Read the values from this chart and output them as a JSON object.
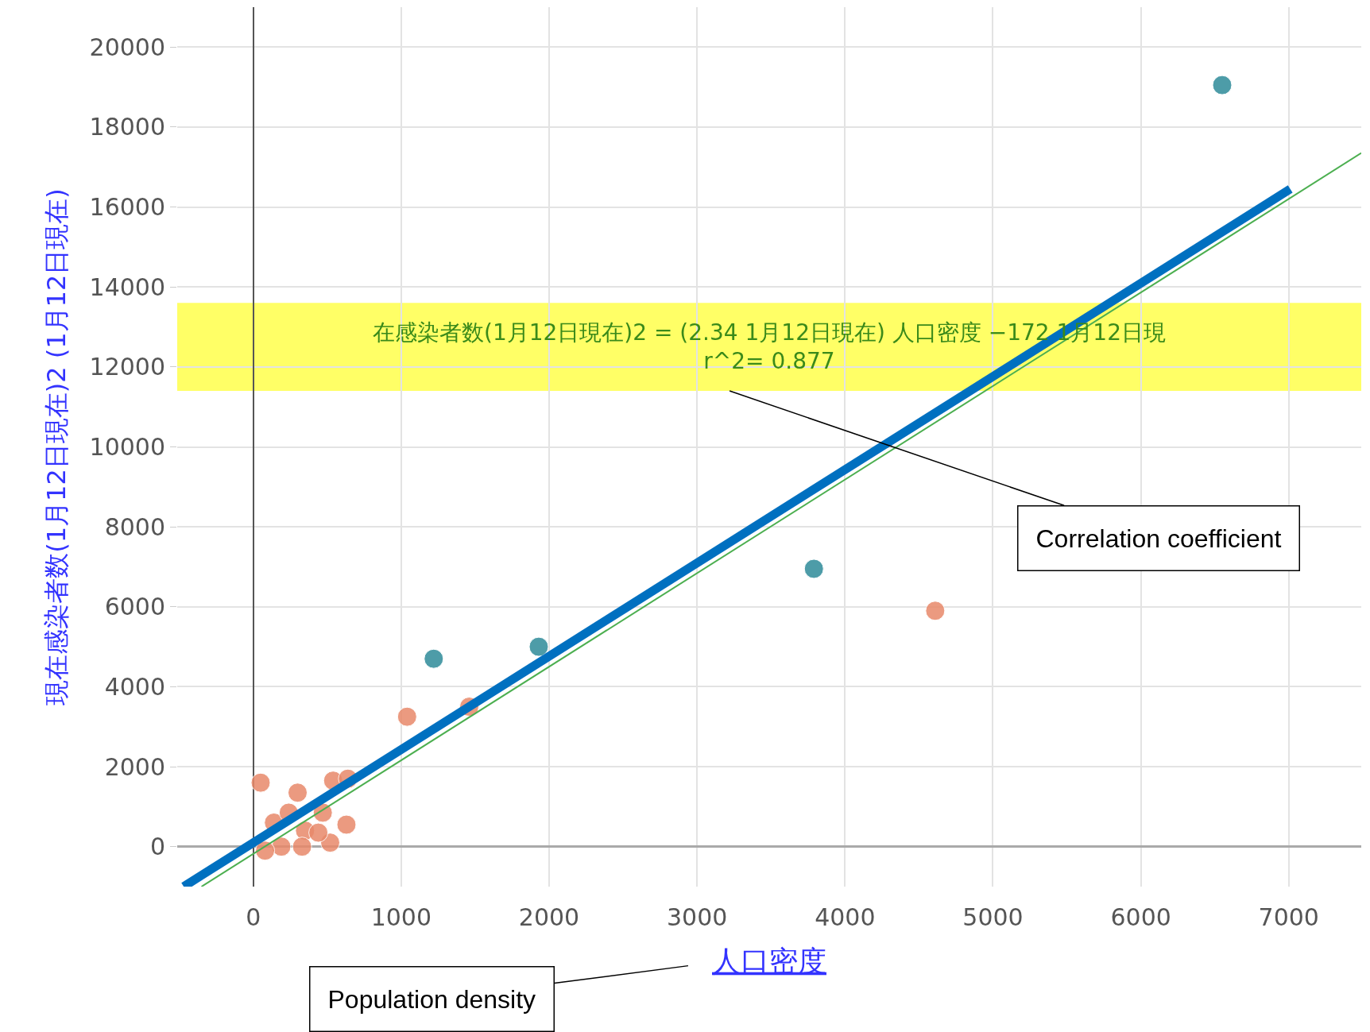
{
  "chart_data": {
    "type": "scatter",
    "xlabel": "人口密度",
    "ylabel": "現在感染者数(1月12日現在)2 (1月12日現在)",
    "xlim": [
      -514,
      7490
    ],
    "ylim": [
      -1000,
      21000
    ],
    "xticks": [
      0,
      1000,
      2000,
      3000,
      4000,
      5000,
      6000,
      7000
    ],
    "yticks": [
      0,
      2000,
      4000,
      6000,
      8000,
      10000,
      12000,
      14000,
      16000,
      18000,
      20000
    ],
    "grid": true,
    "series": [
      {
        "color": "#e8896a",
        "marker": "circle",
        "x": [
          4610,
          1040,
          1460,
          50,
          300,
          540,
          640,
          630,
          520,
          140,
          240,
          350,
          190,
          80,
          330,
          470,
          440
        ],
        "values": [
          5900,
          3250,
          3500,
          1600,
          1350,
          1650,
          1700,
          550,
          100,
          600,
          850,
          400,
          0,
          -100,
          0,
          850,
          350
        ]
      },
      {
        "color": "#2e8b9a",
        "marker": "circle",
        "x": [
          6550,
          3790,
          1930,
          1220
        ],
        "values": [
          19050,
          6950,
          5000,
          4700
        ]
      },
      {
        "type": "line",
        "marker": "none",
        "color": "#4caf50",
        "line_style": "solid",
        "x": [
          -350,
          7490
        ],
        "values": [
          -1000,
          17350
        ]
      },
      {
        "type": "line",
        "marker": "none",
        "color": "#0070c0",
        "line_style": "solid",
        "x": [
          -470,
          7010
        ],
        "values": [
          -1000,
          16450
        ]
      }
    ],
    "bands": [
      {
        "axis": "y",
        "from": 11400,
        "to": 13600,
        "color": "#ffff00",
        "label": "在感染者数(1月12日現在)2 = (2.34 1月12日現在) 人口密度 −172 1月12日現\nr^2= 0.877"
      }
    ],
    "annotations": [
      {
        "text": "Correlation coefficient",
        "x": 3220,
        "y": 11400
      },
      "Population density"
    ]
  }
}
